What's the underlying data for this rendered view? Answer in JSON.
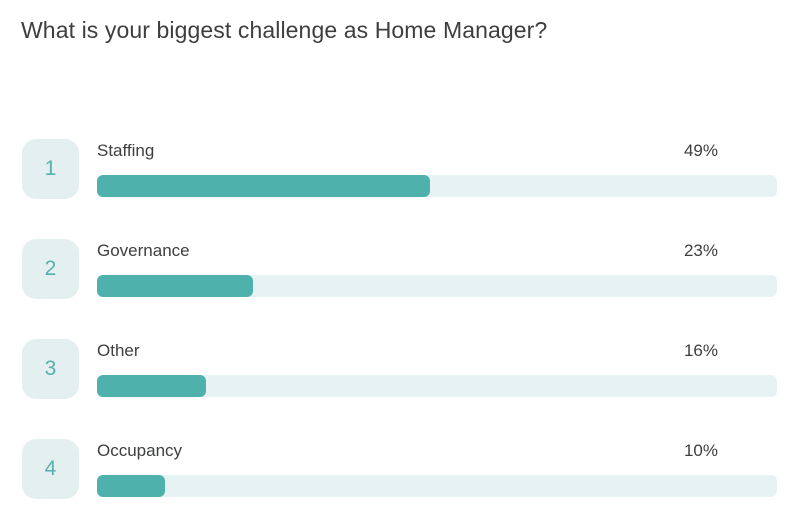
{
  "poll": {
    "question": "What is your biggest challenge as Home Manager?"
  },
  "colors": {
    "bar_fill": "#4fb1ac",
    "bar_track": "#e7f3f2",
    "badge_bg": "#e3f0ef",
    "badge_number": "#56b0ad",
    "text": "#3d3e3e"
  },
  "chart_data": {
    "type": "bar",
    "orientation": "horizontal",
    "title": "What is your biggest challenge as Home Manager?",
    "categories": [
      "Staffing",
      "Governance",
      "Other",
      "Occupancy"
    ],
    "values": [
      49,
      23,
      16,
      10
    ],
    "value_unit": "%",
    "xlim": [
      0,
      100
    ],
    "legend": "none",
    "grid": "off",
    "items": [
      {
        "rank": "1",
        "label": "Staffing",
        "percent_label": "49%",
        "value": 49
      },
      {
        "rank": "2",
        "label": "Governance",
        "percent_label": "23%",
        "value": 23
      },
      {
        "rank": "3",
        "label": "Other",
        "percent_label": "16%",
        "value": 16
      },
      {
        "rank": "4",
        "label": "Occupancy",
        "percent_label": "10%",
        "value": 10
      }
    ]
  }
}
